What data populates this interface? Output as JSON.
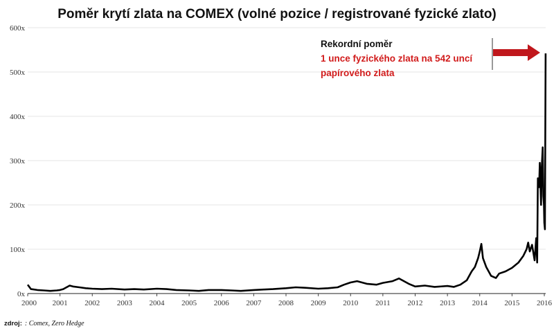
{
  "chart_data": {
    "type": "line",
    "title": "Poměr krytí zlata na COMEX (volné pozice / registrované fyzické zlato)",
    "xlabel": "",
    "ylabel": "",
    "xlim": [
      2000,
      2016
    ],
    "ylim": [
      0,
      600
    ],
    "x_ticks": [
      2000,
      2001,
      2002,
      2003,
      2004,
      2005,
      2006,
      2007,
      2008,
      2009,
      2010,
      2011,
      2012,
      2013,
      2014,
      2015,
      2016
    ],
    "y_ticks": [
      {
        "value": 0,
        "label": "0x"
      },
      {
        "value": 100,
        "label": "100x"
      },
      {
        "value": 200,
        "label": "200x"
      },
      {
        "value": 300,
        "label": "300x"
      },
      {
        "value": 400,
        "label": "400x"
      },
      {
        "value": 500,
        "label": "500x"
      },
      {
        "value": 600,
        "label": "600x"
      }
    ],
    "grid": "horizontal",
    "series": [
      {
        "color": "#000000",
        "x": [
          2000.0,
          2000.05,
          2000.1,
          2000.2,
          2000.3,
          2000.5,
          2000.7,
          2000.9,
          2001.0,
          2001.1,
          2001.3,
          2001.4,
          2001.6,
          2001.8,
          2002.0,
          2002.3,
          2002.6,
          2003.0,
          2003.3,
          2003.6,
          2004.0,
          2004.3,
          2004.6,
          2005.0,
          2005.3,
          2005.6,
          2006.0,
          2006.3,
          2006.6,
          2007.0,
          2007.3,
          2007.6,
          2008.0,
          2008.3,
          2008.6,
          2009.0,
          2009.3,
          2009.6,
          2009.8,
          2010.0,
          2010.2,
          2010.5,
          2010.8,
          2011.0,
          2011.3,
          2011.5,
          2011.6,
          2011.8,
          2012.0,
          2012.3,
          2012.6,
          2013.0,
          2013.2,
          2013.4,
          2013.6,
          2013.75,
          2013.85,
          2013.95,
          2014.0,
          2014.05,
          2014.1,
          2014.2,
          2014.35,
          2014.5,
          2014.6,
          2014.8,
          2015.0,
          2015.2,
          2015.35,
          2015.45,
          2015.5,
          2015.55,
          2015.62,
          2015.7,
          2015.75,
          2015.78,
          2015.8,
          2015.84,
          2015.86,
          2015.9,
          2015.92,
          2015.95,
          2015.97,
          2015.99,
          2016.0,
          2016.02,
          2016.04
        ],
        "y": [
          20,
          15,
          10,
          9,
          8,
          7,
          6,
          7,
          8,
          10,
          18,
          16,
          14,
          12,
          11,
          10,
          11,
          9,
          10,
          9,
          11,
          10,
          8,
          7,
          6,
          8,
          8,
          7,
          6,
          8,
          9,
          10,
          12,
          14,
          13,
          11,
          12,
          14,
          20,
          25,
          28,
          22,
          20,
          24,
          28,
          34,
          30,
          22,
          16,
          18,
          15,
          17,
          15,
          20,
          30,
          50,
          60,
          80,
          95,
          112,
          80,
          60,
          40,
          35,
          45,
          50,
          58,
          70,
          85,
          100,
          115,
          95,
          110,
          75,
          125,
          70,
          260,
          240,
          295,
          200,
          285,
          330,
          220,
          200,
          160,
          145,
          542
        ]
      }
    ],
    "annotations": [
      {
        "text": "Rekordní poměr",
        "color": "#111111"
      },
      {
        "text": "1 unce fyzického zlata na 542 uncí",
        "color": "#d11b1b"
      },
      {
        "text": "papírového zlata",
        "color": "#d11b1b"
      }
    ],
    "arrow_color": "#c0171c",
    "source_label": "zdroj:",
    "source_value": ": Comex, Zero Hedge"
  }
}
